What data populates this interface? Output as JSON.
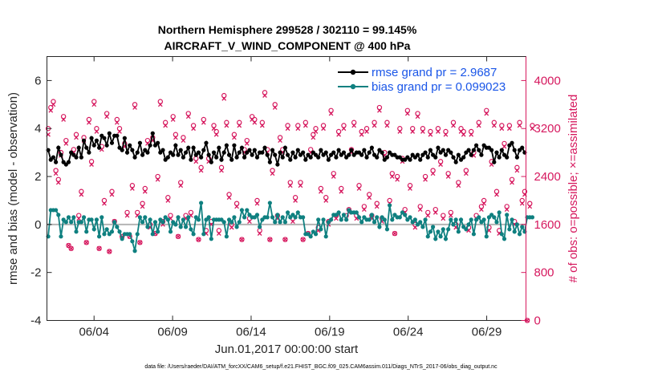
{
  "chart_data": {
    "type": "line",
    "title_line1": "Northern Hemisphere 299528 / 302110 = 99.145%",
    "title_line2": "AIRCRAFT_V_WIND_COMPONENT @ 400 hPa",
    "xlabel": "Jun.01,2017 00:00:00 start",
    "ylabel": "rmse and bias (model - observation)",
    "ylabel_right": "# of obs: o=possible; ×=assimilated",
    "xlim": [
      0,
      30.5
    ],
    "ylim": [
      -4,
      7
    ],
    "ylim_right": [
      0,
      4400
    ],
    "xticks": [
      3,
      8,
      13,
      18,
      23,
      28
    ],
    "xtick_labels": [
      "06/04",
      "06/09",
      "06/14",
      "06/19",
      "06/24",
      "06/29"
    ],
    "yticks": [
      -4,
      -2,
      0,
      2,
      4,
      6
    ],
    "ytick_labels": [
      "-4",
      "-2",
      "0",
      "2",
      "4",
      "6"
    ],
    "yticks_right": [
      0,
      800,
      1600,
      2400,
      3200,
      4000
    ],
    "ytick_labels_right": [
      "0",
      "800",
      "1600",
      "2400",
      "3200",
      "4000"
    ],
    "legend": [
      {
        "label": "rmse grand pr = 2.9687",
        "color": "#000000"
      },
      {
        "label": "bias grand pr = 0.099023",
        "color": "#0f8080"
      }
    ],
    "footnote": "data file: /Users/raeder/DAI/ATM_forcXX/CAM6_setup/f.e21.FHIST_BGC.f09_025.CAM6assim.011/Diags_NTrS_2017-06/obs_diag_output.nc",
    "colors": {
      "rmse": "#000000",
      "bias": "#0f8080",
      "counts": "#d6185e",
      "zero": "#b4b4b4"
    },
    "series": [
      {
        "name": "rmse",
        "values": [
          3.1,
          2.7,
          2.8,
          2.6,
          3.2,
          2.9,
          2.6,
          2.5,
          2.6,
          3.0,
          2.9,
          2.8,
          3.2,
          2.8,
          3.5,
          3.2,
          3.0,
          3.6,
          3.3,
          3.5,
          3.2,
          3.7,
          3.6,
          3.3,
          3.8,
          3.4,
          3.7,
          3.7,
          3.2,
          3.1,
          3.6,
          3.0,
          3.3,
          3.1,
          2.8,
          3.0,
          3.4,
          2.9,
          3.1,
          3.0,
          3.3,
          3.8,
          3.3,
          3.4,
          3.0,
          3.1,
          2.7,
          2.8,
          3.0,
          2.9,
          3.3,
          2.9,
          3.1,
          2.8,
          3.0,
          3.2,
          2.7,
          3.2,
          2.9,
          3.0,
          2.8,
          3.1,
          3.4,
          2.9,
          2.6,
          3.0,
          2.8,
          3.2,
          2.7,
          3.0,
          3.3,
          2.9,
          2.7,
          3.3,
          2.8,
          3.0,
          3.2,
          2.8,
          3.0,
          3.1,
          2.9,
          3.1,
          2.8,
          3.0,
          3.0,
          3.2,
          2.9,
          2.6,
          3.1,
          2.9,
          2.5,
          3.0,
          2.8,
          3.2,
          2.9,
          2.7,
          3.0,
          2.8,
          3.1,
          2.9,
          3.0,
          2.7,
          2.9,
          2.8,
          3.0,
          2.9,
          2.8,
          3.1,
          2.9,
          3.0,
          2.7,
          2.9,
          3.0,
          2.8,
          3.1,
          2.9,
          3.0,
          2.8,
          2.9,
          3.1,
          2.9,
          3.0,
          3.0,
          2.9,
          3.1,
          2.8,
          3.0,
          3.2,
          2.9,
          2.8,
          3.1,
          3.0,
          2.7,
          2.8,
          3.0,
          2.9,
          2.9,
          2.8,
          2.8,
          2.7,
          2.7,
          2.8,
          2.7,
          2.9,
          2.8,
          2.9,
          2.7,
          2.9,
          3.0,
          2.8,
          3.1,
          2.9,
          2.8,
          3.2,
          3.0,
          3.1,
          2.9,
          3.1,
          3.0,
          2.8,
          2.6,
          2.9,
          2.7,
          2.8,
          3.0,
          3.1,
          2.9,
          3.1,
          3.3,
          3.1,
          2.9,
          3.3,
          3.2,
          3.2,
          3.1,
          2.6,
          3.0,
          2.8,
          3.1,
          2.9,
          2.8,
          3.3,
          3.4,
          3.1,
          2.8,
          3.1,
          3.2,
          3.0
        ]
      },
      {
        "name": "bias",
        "values": [
          -0.5,
          0.6,
          0.6,
          0.6,
          0.4,
          -0.5,
          0.2,
          0.1,
          0.3,
          0.1,
          0.3,
          -0.3,
          0.1,
          0.1,
          0.3,
          -0.3,
          0.2,
          0.2,
          -0.2,
          0.2,
          -0.5,
          0.3,
          -0.4,
          -0.2,
          -0.4,
          -0.3,
          0.1,
          -0.1,
          -0.3,
          -0.6,
          -0.4,
          -0.4,
          -0.4,
          -0.7,
          -1.1,
          -0.4,
          0.3,
          0.1,
          0.3,
          -0.1,
          0.2,
          -0.4,
          0.1,
          -0.3,
          0.2,
          0.1,
          0.3,
          0.2,
          -0.3,
          0.1,
          0.0,
          0.3,
          -0.1,
          0.2,
          -0.1,
          0.3,
          -0.2,
          -0.4,
          0.3,
          0.2,
          0.9,
          -0.4,
          0.2,
          0.3,
          -0.6,
          0.2,
          0.2,
          0.2,
          0.2,
          0.1,
          -0.5,
          0.2,
          0.1,
          0.3,
          -0.1,
          0.1,
          0.6,
          0.3,
          0.6,
          0.4,
          0.3,
          0.3,
          0.4,
          -0.1,
          0.2,
          0.3,
          0.3,
          0.9,
          0.3,
          0.1,
          0.4,
          0.1,
          0.3,
          0.1,
          0.5,
          0.3,
          0.4,
          0.3,
          0.5,
          0.3,
          0.3,
          -0.4,
          -0.4,
          -0.5,
          -0.3,
          -0.4,
          0.2,
          -0.2,
          0.2,
          -0.5,
          0.1,
          0.2,
          0.4,
          0.4,
          0.5,
          0.2,
          0.4,
          0.2,
          0.6,
          0.5,
          0.5,
          0.5,
          0.3,
          0.1,
          0.3,
          0.2,
          0.2,
          0.4,
          0.1,
          0.3,
          -0.1,
          0.3,
          0.2,
          -0.2,
          0.8,
          0.2,
          0.4,
          0.3,
          0.3,
          0.5,
          0.4,
          0.2,
          0.3,
          0.1,
          0.2,
          0.0,
          0.1,
          -0.1,
          0.2,
          -0.5,
          -0.3,
          -0.1,
          -0.6,
          -0.3,
          -0.5,
          -0.2,
          -0.6,
          -0.2,
          0.2,
          0.0,
          0.2,
          -0.3,
          0.2,
          -0.1,
          -0.2,
          0.0,
          0.2,
          -0.4,
          0.2,
          0.3,
          0.1,
          0.2,
          -0.5,
          0.3,
          0.4,
          0.3,
          0.1,
          0.5,
          -0.4,
          -0.6,
          0.4,
          -0.2,
          0.2,
          -0.3,
          0.0,
          -0.4,
          -0.1,
          -0.3,
          0.3,
          0.3,
          0.3
        ]
      },
      {
        "name": "obs_possible",
        "values": [
          3200,
          3550,
          3650,
          2500,
          2350,
          2800,
          3400,
          3000,
          1250,
          1200,
          2850,
          3100,
          1750,
          2150,
          3050,
          1300,
          3350,
          2650,
          3650,
          3200,
          1200,
          2900,
          2000,
          3450,
          1150,
          2150,
          1650,
          3350,
          3200,
          1400,
          2950,
          1800,
          1400,
          2250,
          3600,
          1800,
          1300,
          1950,
          2200,
          3000,
          1600,
          3050,
          1450,
          2400,
          3650,
          1650,
          3300,
          2050,
          1750,
          3400,
          3100,
          1400,
          2300,
          3050,
          1750,
          3450,
          1800,
          3250,
          2700,
          1350,
          2550,
          3350,
          1500,
          2700,
          1650,
          3250,
          3150,
          1500,
          2550,
          3750,
          3300,
          2100,
          1600,
          3100,
          1950,
          3300,
          1350,
          2850,
          3000,
          1700,
          3400,
          3350,
          2000,
          1500,
          3300,
          3800,
          2850,
          1350,
          2500,
          3600,
          1750,
          3050,
          2850,
          1350,
          3250,
          2300,
          1700,
          2050,
          3250,
          2300,
          1350,
          3300,
          1450,
          2850,
          3100,
          3200,
          1550,
          2200,
          3250,
          2050,
          1650,
          3500,
          2450,
          1750,
          3150,
          2200,
          3250,
          1750,
          1850,
          2850,
          3300,
          1750,
          2250,
          3150,
          1900,
          3200,
          2100,
          1750,
          3300,
          1950,
          3550,
          1700,
          2800,
          3300,
          2000,
          2450,
          1450,
          2400,
          3200,
          2700,
          1850,
          3500,
          2250,
          3200,
          1600,
          3450,
          1900,
          3200,
          2400,
          1800,
          3150,
          2500,
          1850,
          3200,
          2650,
          1750,
          3150,
          2450,
          1800,
          3300,
          1600,
          2300,
          3200,
          3150,
          2500,
          1550,
          3150,
          2800,
          1750,
          3300,
          1900,
          2000,
          3500,
          1550,
          2650,
          3300,
          2150,
          1500,
          3250,
          2950,
          1900,
          3250,
          2350,
          1650,
          2550,
          3300,
          2000,
          2150,
          0,
          1950,
          3250
        ]
      },
      {
        "name": "obs_assimilated",
        "values": [
          3100,
          3500,
          3600,
          2450,
          2300,
          2750,
          3350,
          2950,
          1250,
          1200,
          2800,
          3050,
          1700,
          2100,
          3000,
          1300,
          3300,
          2600,
          3600,
          3150,
          1200,
          2850,
          1950,
          3400,
          1150,
          2100,
          1650,
          3300,
          3150,
          1400,
          2900,
          1750,
          1400,
          2200,
          3550,
          1750,
          1300,
          1900,
          2150,
          2950,
          1550,
          3000,
          1450,
          2350,
          3600,
          1600,
          3250,
          2000,
          1700,
          3350,
          3050,
          1400,
          2250,
          3000,
          1700,
          3400,
          1750,
          3200,
          2650,
          1350,
          2500,
          3300,
          1450,
          2650,
          1600,
          3200,
          3100,
          1450,
          2500,
          3700,
          3250,
          2050,
          1550,
          3050,
          1900,
          3250,
          1350,
          2800,
          2950,
          1650,
          3350,
          3300,
          1950,
          1450,
          3250,
          3750,
          2800,
          1350,
          2450,
          3550,
          1700,
          3000,
          2800,
          1350,
          3200,
          2250,
          1650,
          2000,
          3200,
          2250,
          1350,
          3250,
          1450,
          2800,
          3050,
          3150,
          1500,
          2150,
          3200,
          2000,
          1600,
          3450,
          2400,
          1700,
          3100,
          2150,
          3200,
          1700,
          1800,
          2800,
          3250,
          1700,
          2200,
          3100,
          1850,
          3150,
          2050,
          1700,
          3250,
          1900,
          3500,
          1650,
          2750,
          3250,
          1950,
          2400,
          1450,
          2350,
          3150,
          2650,
          1800,
          3450,
          2200,
          3150,
          1550,
          3400,
          1850,
          3150,
          2350,
          1750,
          3100,
          2450,
          1800,
          3150,
          2600,
          1700,
          3100,
          2400,
          1750,
          3250,
          1550,
          2250,
          3150,
          3100,
          2450,
          1500,
          3100,
          2750,
          1700,
          3250,
          1850,
          1950,
          3450,
          1500,
          2600,
          3250,
          2100,
          1450,
          3200,
          2900,
          1850,
          3200,
          2300,
          1600,
          2500,
          3250,
          1950,
          2100,
          0,
          1900,
          3200
        ]
      }
    ]
  }
}
